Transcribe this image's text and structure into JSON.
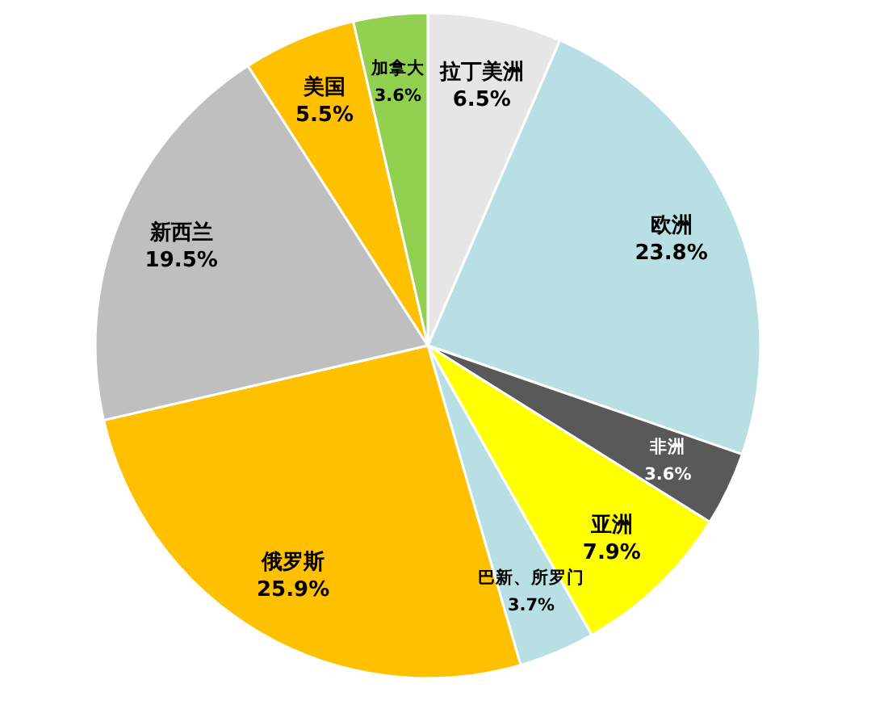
{
  "chart_data": {
    "type": "pie",
    "categories": [
      "拉丁美洲",
      "欧洲",
      "非洲",
      "亚洲",
      "巴新、所罗门",
      "俄罗斯",
      "新西兰",
      "美国",
      "加拿大"
    ],
    "values": [
      6.5,
      23.8,
      3.6,
      7.9,
      3.7,
      25.9,
      19.5,
      5.5,
      3.6
    ],
    "colors": [
      "#e6e6e6",
      "#b7dfe4",
      "#595959",
      "#ffff00",
      "#b7dfe4",
      "#ffc000",
      "#bfbfbf",
      "#ffc000",
      "#92d050"
    ],
    "value_labels": [
      "6.5%",
      "23.8%",
      "3.6%",
      "7.9%",
      "3.7%",
      "25.9%",
      "19.5%",
      "5.5%",
      "3.6%"
    ]
  }
}
